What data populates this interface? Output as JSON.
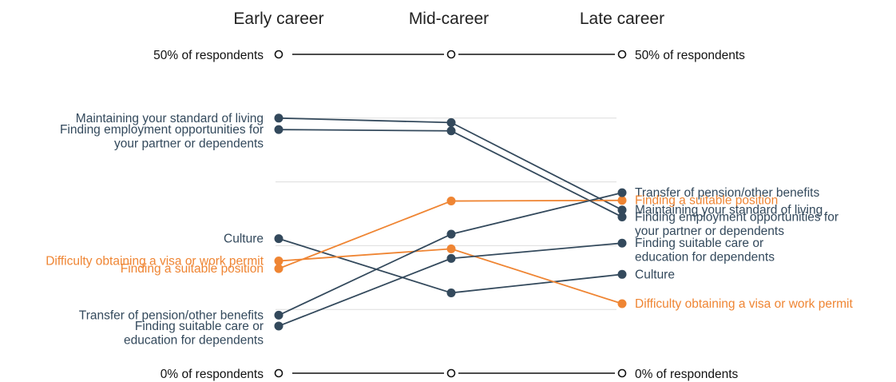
{
  "chart_data": {
    "type": "slope",
    "columns": [
      "Early career",
      "Mid-career",
      "Late career"
    ],
    "reference_labels": {
      "top_left": "50% of respondents",
      "top_right": "50% of respondents",
      "bottom_left": "0% of respondents",
      "bottom_right": "0% of respondents"
    },
    "ylim": [
      0,
      50
    ],
    "y_unit": "% of respondents",
    "grid": true,
    "colors": {
      "dark": "#33495c",
      "orange": "#ef8533",
      "reference": "#111111",
      "grid": "#dddddd"
    },
    "series": [
      {
        "name": "Maintaining your standard of living",
        "label_lines": [
          "Maintaining your standard of living"
        ],
        "right_label_lines": [
          "Maintaining your standard of living"
        ],
        "color": "dark",
        "values": [
          40.0,
          39.3,
          25.6
        ]
      },
      {
        "name": "Finding employment opportunities for your partner or dependents",
        "label_lines": [
          "Finding employment opportunities for",
          "your partner or dependents"
        ],
        "right_label_lines": [
          "Finding employment opportunities for",
          "your partner or dependents"
        ],
        "color": "dark",
        "values": [
          38.2,
          38.0,
          24.5
        ]
      },
      {
        "name": "Culture",
        "label_lines": [
          "Culture"
        ],
        "right_label_lines": [
          "Culture"
        ],
        "color": "dark",
        "values": [
          21.1,
          12.6,
          15.5
        ]
      },
      {
        "name": "Difficulty obtaining a visa or work permit",
        "label_lines": [
          "Difficulty obtaining a visa or work permit"
        ],
        "right_label_lines": [
          "Difficulty obtaining a visa or work permit"
        ],
        "color": "orange",
        "values": [
          17.6,
          19.5,
          10.9
        ]
      },
      {
        "name": "Finding a suitable position",
        "label_lines": [
          "Finding a suitable position"
        ],
        "right_label_lines": [
          "Finding a suitable position"
        ],
        "color": "orange",
        "values": [
          16.4,
          27.0,
          27.1
        ]
      },
      {
        "name": "Transfer of pension/other benefits",
        "label_lines": [
          "Transfer of pension/other benefits"
        ],
        "right_label_lines": [
          "Transfer of pension/other benefits"
        ],
        "color": "dark",
        "values": [
          9.1,
          21.8,
          28.3
        ]
      },
      {
        "name": "Finding suitable care or education for dependents",
        "label_lines": [
          "Finding suitable care or",
          "education for dependents"
        ],
        "right_label_lines": [
          "Finding suitable care or",
          "education for dependents"
        ],
        "color": "dark",
        "values": [
          7.4,
          18.0,
          20.4
        ]
      }
    ]
  }
}
